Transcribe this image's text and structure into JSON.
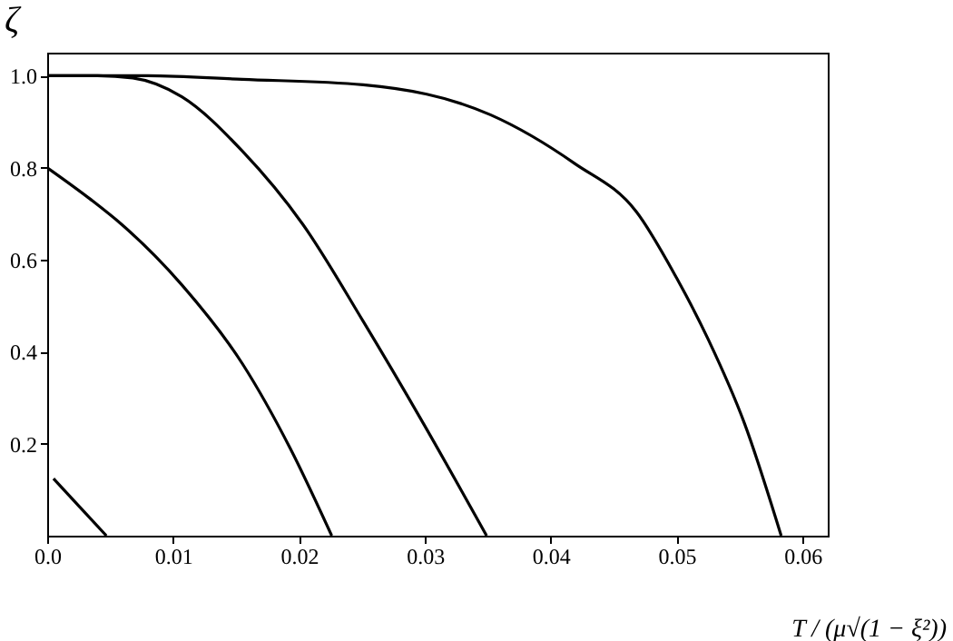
{
  "chart_data": {
    "type": "line",
    "xlabel": "T / (μ√(1 − ξ²))",
    "ylabel": "ζ",
    "xlim": [
      0,
      0.062
    ],
    "ylim": [
      0,
      1.05
    ],
    "xticks": [
      {
        "value": 0,
        "label": "0.0"
      },
      0.01,
      0.02,
      0.03,
      0.04,
      0.05,
      0.06
    ],
    "yticks": [
      0.2,
      0.4,
      0.6,
      0.8,
      {
        "value": 1,
        "label": "1.0"
      }
    ],
    "grid": false,
    "marker": "none",
    "line_style": "solid",
    "series": [
      {
        "color": "#000000",
        "x": [
          0.0005,
          0.0025,
          0.0047
        ],
        "values": [
          0.124,
          0.065,
          0
        ]
      },
      {
        "color": "#000000",
        "x": [
          0,
          0.0035,
          0.0059,
          0.0107,
          0.0155,
          0.0193,
          0.0226
        ],
        "values": [
          0.8,
          0.73,
          0.677,
          0.545,
          0.374,
          0.19,
          0
        ]
      },
      {
        "color": "#000000",
        "x": [
          0,
          0.004,
          0.0068,
          0.0107,
          0.0155,
          0.0203,
          0.0251,
          0.0299,
          0.0349
        ],
        "values": [
          1,
          1,
          0.995,
          0.954,
          0.836,
          0.677,
          0.466,
          0.243,
          0
        ]
      },
      {
        "color": "#000000",
        "x": [
          0,
          0.008,
          0.0155,
          0.0251,
          0.0352,
          0.0419,
          0.0468,
          0.05,
          0.0525,
          0.0554,
          0.0583
        ],
        "values": [
          1,
          1,
          0.992,
          0.98,
          0.915,
          0.809,
          0.704,
          0.56,
          0.427,
          0.243,
          0
        ]
      }
    ]
  }
}
